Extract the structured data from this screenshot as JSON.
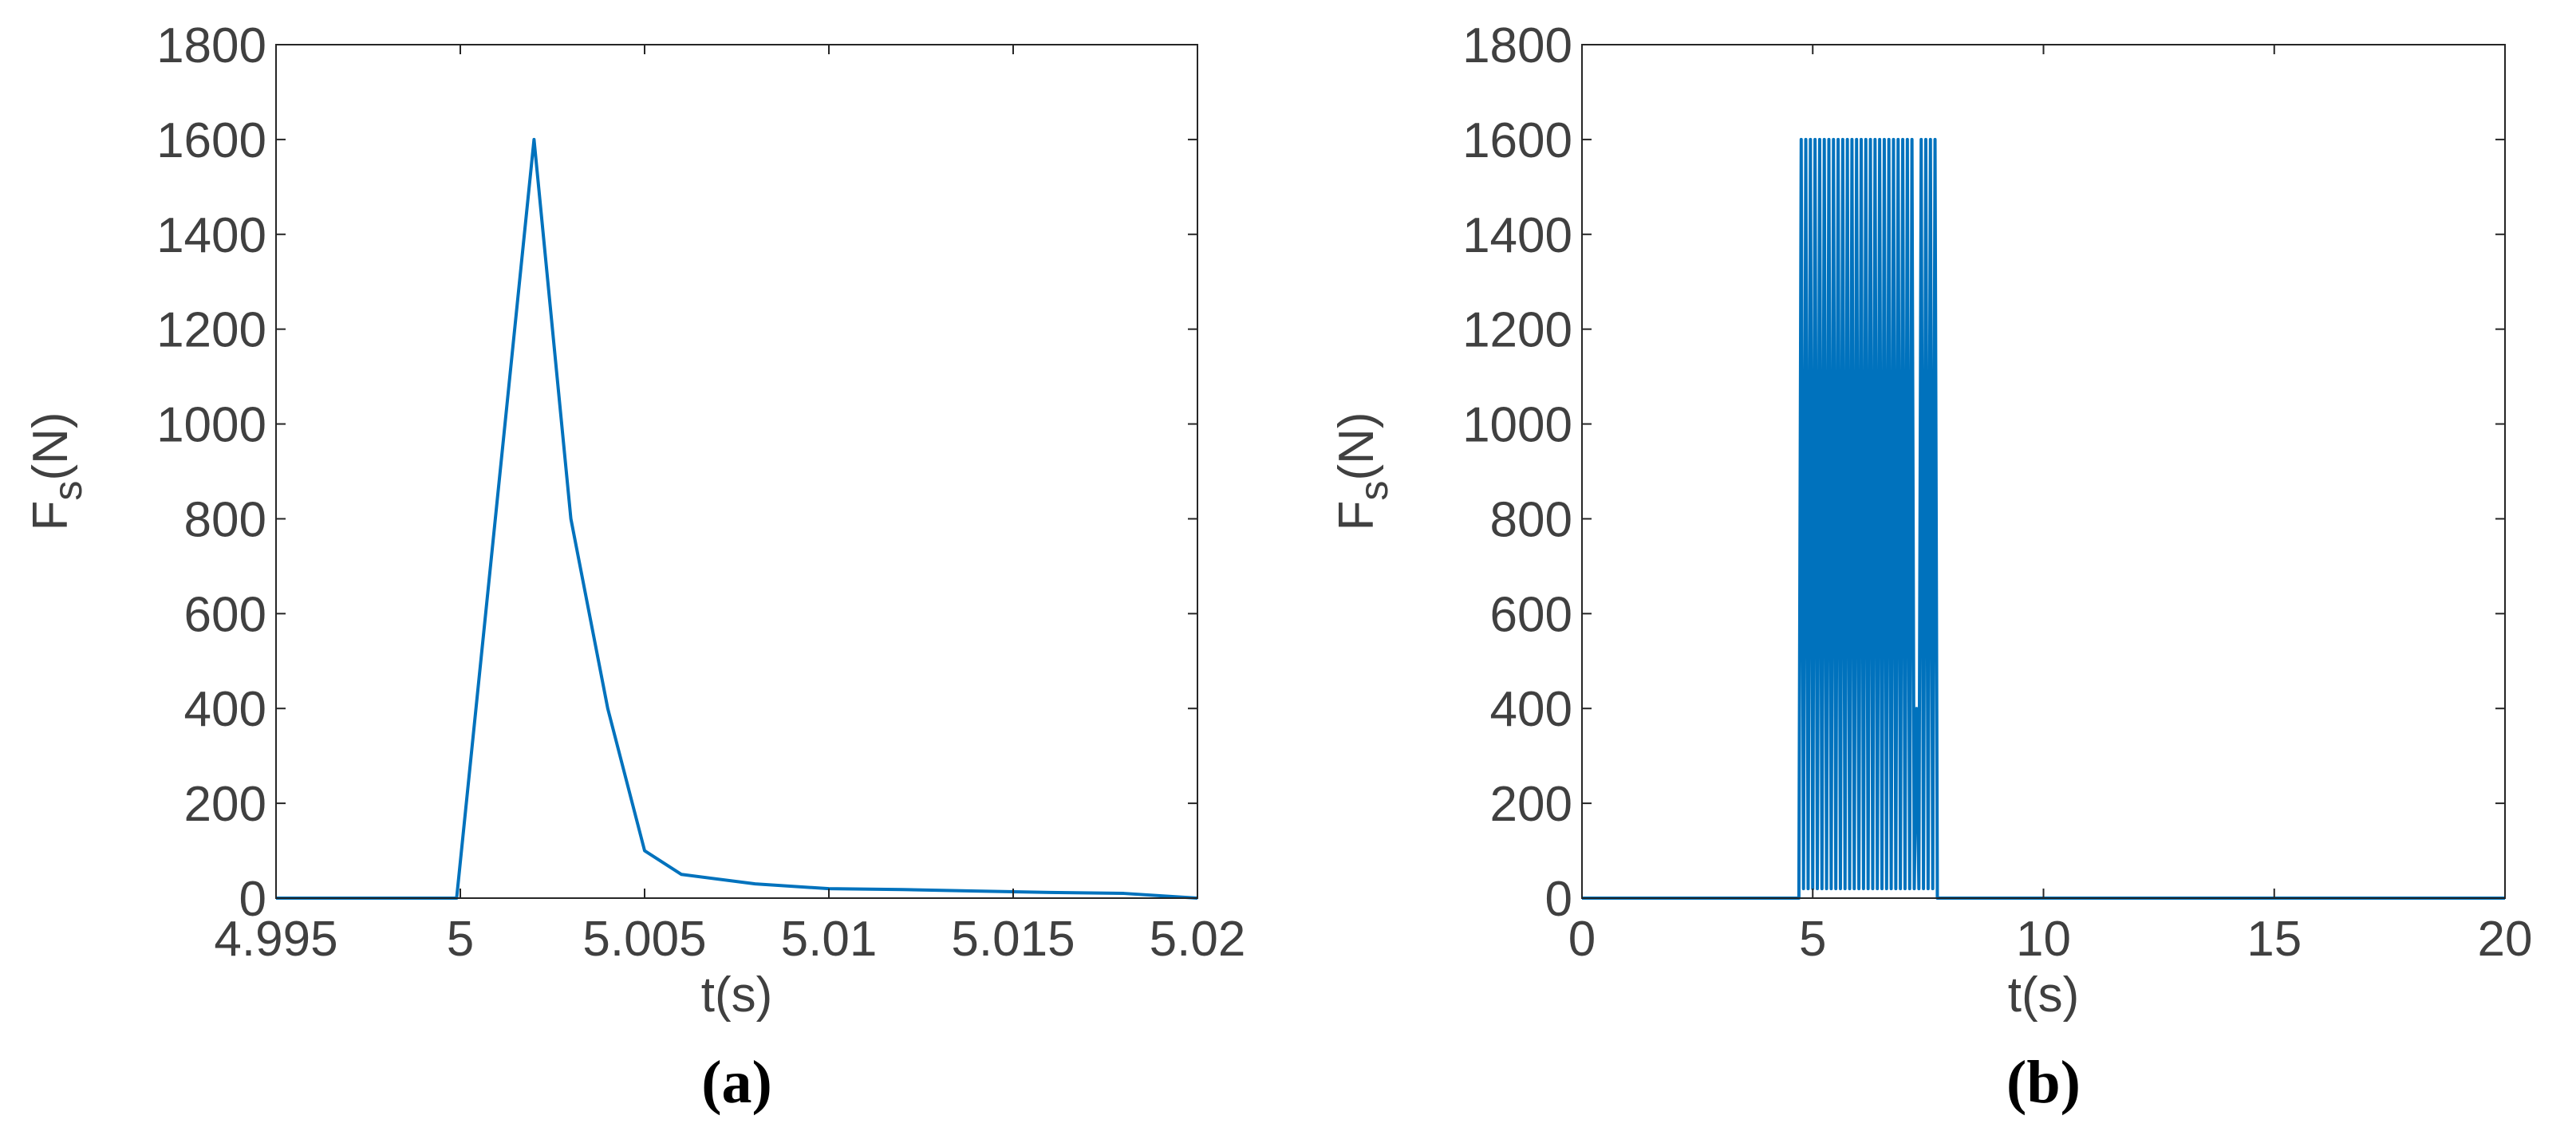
{
  "chart_data": [
    {
      "type": "line",
      "caption": "(a)",
      "xlabel": "t(s)",
      "ylabel": [
        "F",
        "s",
        "(N)"
      ],
      "x": [
        4.995,
        4.9999,
        5.002,
        5.003,
        5.004,
        5.005,
        5.006,
        5.008,
        5.01,
        5.012,
        5.014,
        5.016,
        5.018,
        5.02
      ],
      "series": [
        {
          "color": "#0072bd",
          "values": [
            0,
            0,
            1600,
            800,
            400,
            100,
            50,
            30,
            20,
            18,
            15,
            12,
            10,
            0
          ]
        }
      ],
      "xlim": [
        4.995,
        5.02
      ],
      "xticks": [
        4.995,
        5,
        5.005,
        5.01,
        5.015,
        5.02
      ],
      "ylim": [
        0,
        1800
      ],
      "yticks": [
        0,
        200,
        400,
        600,
        800,
        1000,
        1200,
        1400,
        1600,
        1800
      ]
    },
    {
      "type": "line",
      "caption": "(b)",
      "xlabel": "t(s)",
      "ylabel": [
        "F",
        "s",
        "(N)"
      ],
      "x": [
        0,
        4.7,
        4.75,
        4.8,
        4.85,
        4.9,
        4.95,
        5.0,
        5.05,
        5.1,
        5.15,
        5.2,
        5.25,
        5.3,
        5.35,
        5.4,
        5.45,
        5.5,
        5.55,
        5.6,
        5.65,
        5.7,
        5.75,
        5.8,
        5.85,
        5.9,
        5.95,
        6.0,
        6.05,
        6.1,
        6.15,
        6.2,
        6.25,
        6.3,
        6.35,
        6.4,
        6.45,
        6.5,
        6.55,
        6.6,
        6.65,
        6.7,
        6.75,
        6.8,
        6.85,
        6.9,
        6.95,
        7.0,
        7.05,
        7.1,
        7.15,
        7.2,
        7.25,
        7.3,
        7.35,
        7.4,
        7.45,
        7.5,
        7.55,
        7.6,
        7.65,
        7.7,
        20
      ],
      "series": [
        {
          "color": "#0072bd",
          "values": [
            0,
            0,
            1600,
            20,
            1600,
            20,
            1600,
            20,
            1600,
            20,
            1600,
            20,
            1600,
            20,
            1600,
            20,
            1600,
            20,
            1600,
            20,
            1600,
            20,
            1600,
            20,
            1600,
            20,
            1600,
            20,
            1600,
            20,
            1600,
            20,
            1600,
            20,
            1600,
            20,
            1600,
            20,
            1600,
            20,
            1600,
            20,
            1600,
            20,
            1600,
            20,
            1600,
            20,
            1600,
            20,
            1600,
            20,
            400,
            20,
            1600,
            20,
            1600,
            20,
            1600,
            20,
            1600,
            0,
            0
          ]
        }
      ],
      "xlim": [
        0,
        20
      ],
      "xticks": [
        0,
        5,
        10,
        15,
        20
      ],
      "ylim": [
        0,
        1800
      ],
      "yticks": [
        0,
        200,
        400,
        600,
        800,
        1000,
        1200,
        1400,
        1600,
        1800
      ]
    }
  ]
}
